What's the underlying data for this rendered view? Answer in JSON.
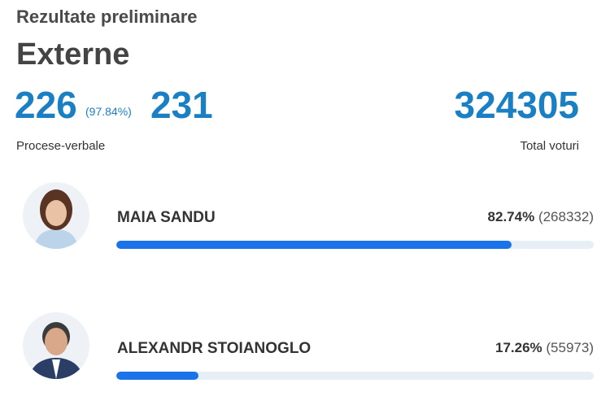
{
  "header": {
    "title": "Rezultate preliminare",
    "subtitle": "Externe"
  },
  "stats": {
    "processed": 226,
    "processed_percent": "(97.84%)",
    "total_reports": 231,
    "reports_label": "Procese-verbale",
    "total_votes": 324305,
    "votes_label": "Total voturi"
  },
  "candidates": [
    {
      "name": "MAIA SANDU",
      "percent": 82.74,
      "percent_label": "82.74%",
      "votes": 268332,
      "votes_label": "(268332)"
    },
    {
      "name": "ALEXANDR STOIANOGLO",
      "percent": 17.26,
      "percent_label": "17.26%",
      "votes": 55973,
      "votes_label": "(55973)"
    }
  ]
}
